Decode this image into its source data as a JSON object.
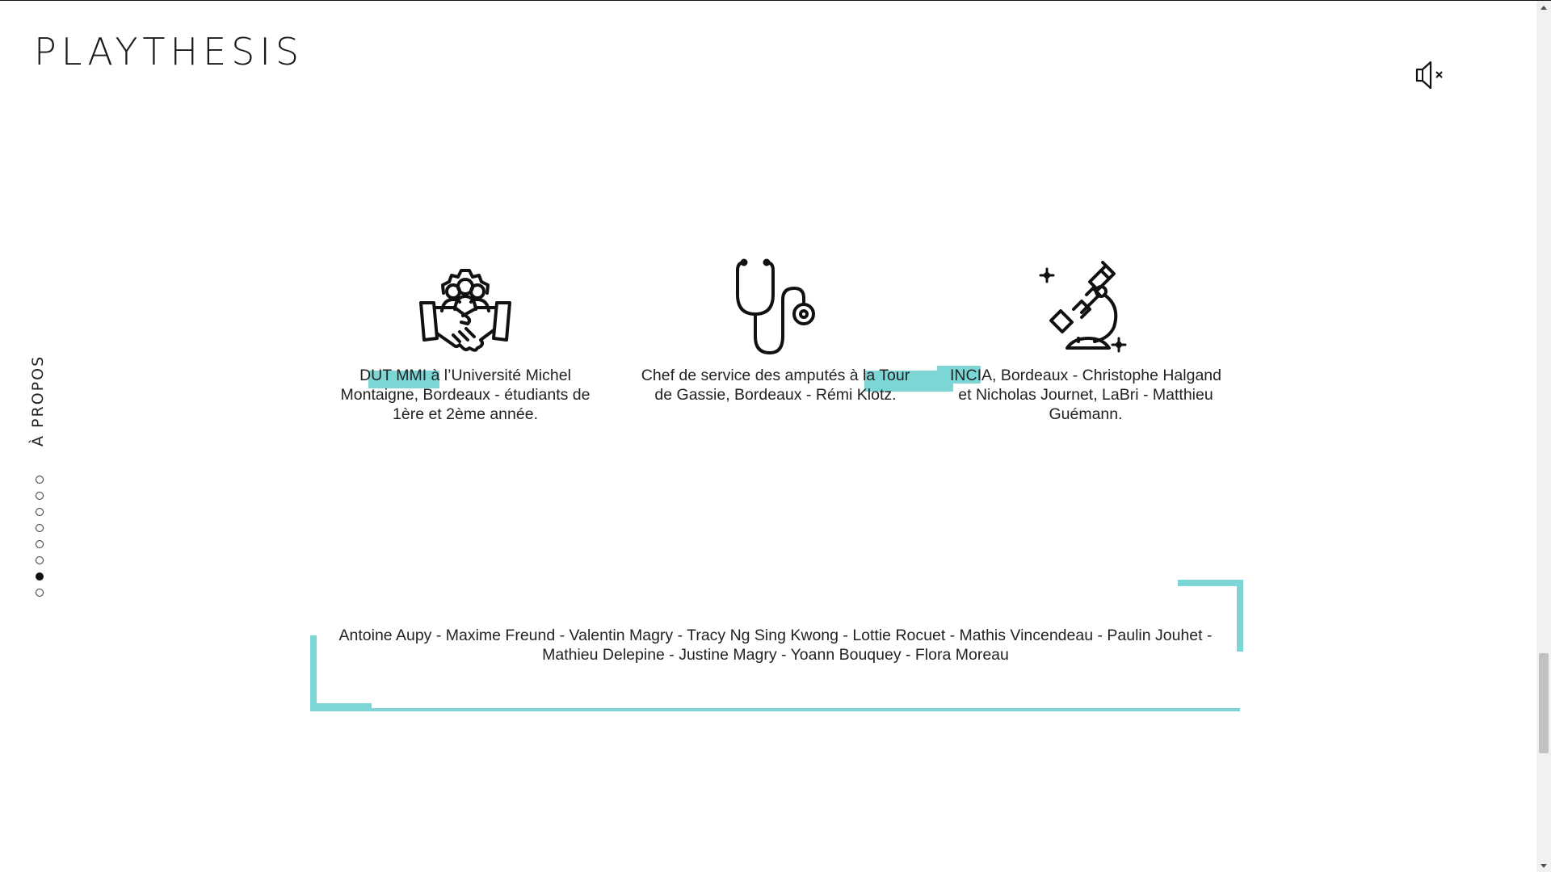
{
  "header": {
    "logo_text": "PLAYTHESIS",
    "sound_icon": "speaker-muted-icon"
  },
  "sidebar": {
    "section_label": "À PROPOS",
    "dots": [
      {
        "active": false
      },
      {
        "active": false
      },
      {
        "active": false
      },
      {
        "active": false
      },
      {
        "active": false
      },
      {
        "active": false
      },
      {
        "active": true
      },
      {
        "active": false
      }
    ]
  },
  "partners": [
    {
      "icon": "teamwork-handshake-icon",
      "text": "DUT MMI à l’Université Michel Montaigne, Bordeaux - étudiants de 1ère et 2ème année."
    },
    {
      "icon": "stethoscope-icon",
      "text": "Chef de service des amputés à la Tour de Gassie, Bordeaux - Rémi Klotz."
    },
    {
      "icon": "microscope-icon",
      "text": "INCIA, Bordeaux - Christophe Halgand et Nicholas Journet, LaBri - Matthieu Guémann."
    }
  ],
  "credits": {
    "text": "Antoine Aupy - Maxime Freund - Valentin Magry - Tracy Ng Sing Kwong - Lottie Rocuet - Mathis Vincendeau - Paulin Jouhet - Mathieu Delepine - Justine Magry - Yoann Bouquey - Flora Moreau"
  },
  "colors": {
    "accent": "#7dd6d6",
    "text": "#222222"
  }
}
